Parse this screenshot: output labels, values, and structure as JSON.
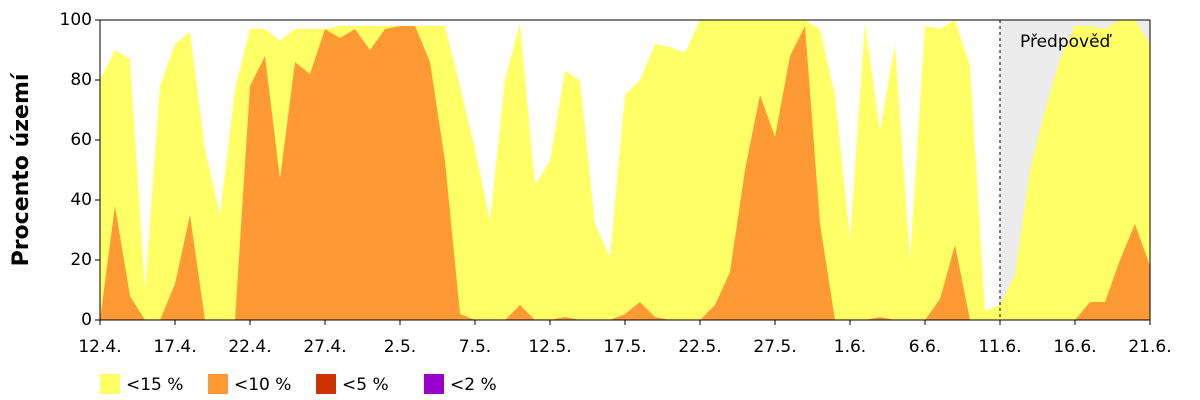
{
  "chart_data": {
    "type": "area",
    "y_label": "Procento území",
    "categories": [
      "12.4.",
      null,
      null,
      null,
      null,
      "17.4.",
      null,
      null,
      null,
      null,
      "22.4.",
      null,
      null,
      null,
      null,
      "27.4.",
      null,
      null,
      null,
      null,
      "2.5.",
      null,
      null,
      null,
      null,
      "7.5.",
      null,
      null,
      null,
      null,
      "12.5.",
      null,
      null,
      null,
      null,
      "17.5.",
      null,
      null,
      null,
      null,
      "22.5.",
      null,
      null,
      null,
      null,
      "27.5.",
      null,
      null,
      null,
      null,
      "1.6.",
      null,
      null,
      null,
      null,
      "6.6.",
      null,
      null,
      null,
      null,
      "11.6.",
      null,
      null,
      null,
      null,
      "16.6.",
      null,
      null,
      null,
      null,
      "21.6."
    ],
    "series": [
      {
        "name": "<15 %",
        "color": "#ffff66",
        "values": [
          80,
          90,
          87,
          10,
          78,
          92,
          96,
          57,
          35,
          77,
          97,
          97,
          93,
          97,
          97,
          97,
          98,
          98,
          98,
          98,
          98,
          98,
          98,
          98,
          78,
          57,
          33,
          80,
          99,
          45,
          53,
          83,
          80,
          32,
          21,
          75,
          80,
          92,
          91,
          89,
          100,
          100,
          100,
          100,
          100,
          100,
          100,
          100,
          97,
          75,
          27,
          99,
          63,
          92,
          20,
          98,
          97,
          100,
          85,
          3,
          5,
          15,
          50,
          70,
          87,
          98,
          98,
          97,
          100,
          100,
          92
        ]
      },
      {
        "name": "<10 %",
        "color": "#ff9933",
        "values": [
          0,
          38,
          8,
          0,
          0,
          12,
          35,
          0,
          0,
          0,
          78,
          88,
          47,
          86,
          82,
          97,
          94,
          97,
          90,
          97,
          98,
          98,
          86,
          53,
          2,
          0,
          0,
          0,
          5,
          0,
          0,
          1,
          0,
          0,
          0,
          2,
          6,
          1,
          0,
          0,
          0,
          5,
          16,
          50,
          75,
          61,
          88,
          98,
          32,
          0,
          0,
          0,
          1,
          0,
          0,
          0,
          7,
          25,
          0,
          0,
          0,
          0,
          0,
          0,
          0,
          0,
          6,
          6,
          20,
          32,
          18
        ]
      },
      {
        "name": "<5 %",
        "color": "#cc3300",
        "values": [
          0,
          0,
          0,
          0,
          0,
          0,
          0,
          0,
          0,
          0,
          0,
          0,
          0,
          0,
          0,
          0,
          0,
          0,
          0,
          0,
          0,
          0,
          0,
          0,
          0,
          0,
          0,
          0,
          0,
          0,
          0,
          0,
          0,
          0,
          0,
          0,
          0,
          0,
          0,
          0,
          0,
          0,
          0,
          0,
          0,
          0,
          0,
          0,
          0,
          0,
          0,
          0,
          0,
          0,
          0,
          0,
          0,
          0,
          0,
          0,
          0,
          0,
          0,
          0,
          0,
          0,
          0,
          0,
          0,
          0,
          0
        ]
      },
      {
        "name": "<2 %",
        "color": "#9900cc",
        "values": [
          0,
          0,
          0,
          0,
          0,
          0,
          0,
          0,
          0,
          0,
          0,
          0,
          0,
          0,
          0,
          0,
          0,
          0,
          0,
          0,
          0,
          0,
          0,
          0,
          0,
          0,
          0,
          0,
          0,
          0,
          0,
          0,
          0,
          0,
          0,
          0,
          0,
          0,
          0,
          0,
          0,
          0,
          0,
          0,
          0,
          0,
          0,
          0,
          0,
          0,
          0,
          0,
          0,
          0,
          0,
          0,
          0,
          0,
          0,
          0,
          0,
          0,
          0,
          0,
          0,
          0,
          0,
          0,
          0,
          0,
          0
        ]
      }
    ],
    "forecast": {
      "label": "Předpověď",
      "start_index": 60
    },
    "ylim": [
      0,
      100
    ],
    "yticks": [
      0,
      20,
      40,
      60,
      80,
      100
    ],
    "grid": false
  }
}
